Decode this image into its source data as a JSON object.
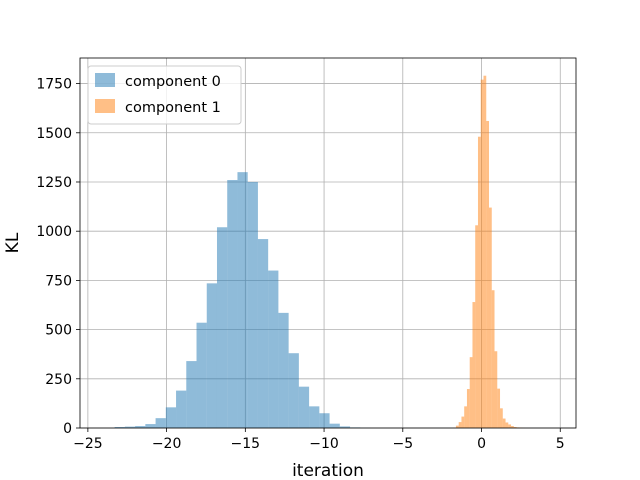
{
  "chart_data": {
    "type": "histogram",
    "xlabel": "iteration",
    "ylabel": "KL",
    "xlim": [
      -25.5,
      6.0
    ],
    "ylim": [
      0,
      1880
    ],
    "grid": true,
    "legend": "top-left",
    "x_ticks": [
      -25,
      -20,
      -15,
      -10,
      -5,
      0,
      5
    ],
    "x_tick_labels": [
      "−25",
      "−20",
      "−15",
      "−10",
      "−5",
      "0",
      "5"
    ],
    "y_ticks": [
      0,
      250,
      500,
      750,
      1000,
      1250,
      1500,
      1750
    ],
    "y_tick_labels": [
      "0",
      "250",
      "500",
      "750",
      "1000",
      "1250",
      "1500",
      "1750"
    ],
    "series": [
      {
        "name": "component 0",
        "color": "#1f77b4",
        "opacity": 0.5,
        "bin_start": -23.3,
        "bin_width": 0.65,
        "values": [
          5,
          7,
          10,
          20,
          50,
          105,
          190,
          340,
          535,
          735,
          1020,
          1260,
          1300,
          1250,
          960,
          800,
          585,
          380,
          210,
          110,
          75,
          22,
          8,
          3,
          1
        ]
      },
      {
        "name": "component 1",
        "color": "#ff7f0e",
        "opacity": 0.5,
        "bin_start": -1.8,
        "bin_width": 0.175,
        "values": [
          2,
          12,
          30,
          58,
          110,
          198,
          360,
          640,
          1030,
          1480,
          1770,
          1790,
          1560,
          1120,
          700,
          390,
          200,
          100,
          48,
          28,
          18,
          10,
          5,
          3,
          2,
          1
        ]
      }
    ]
  }
}
